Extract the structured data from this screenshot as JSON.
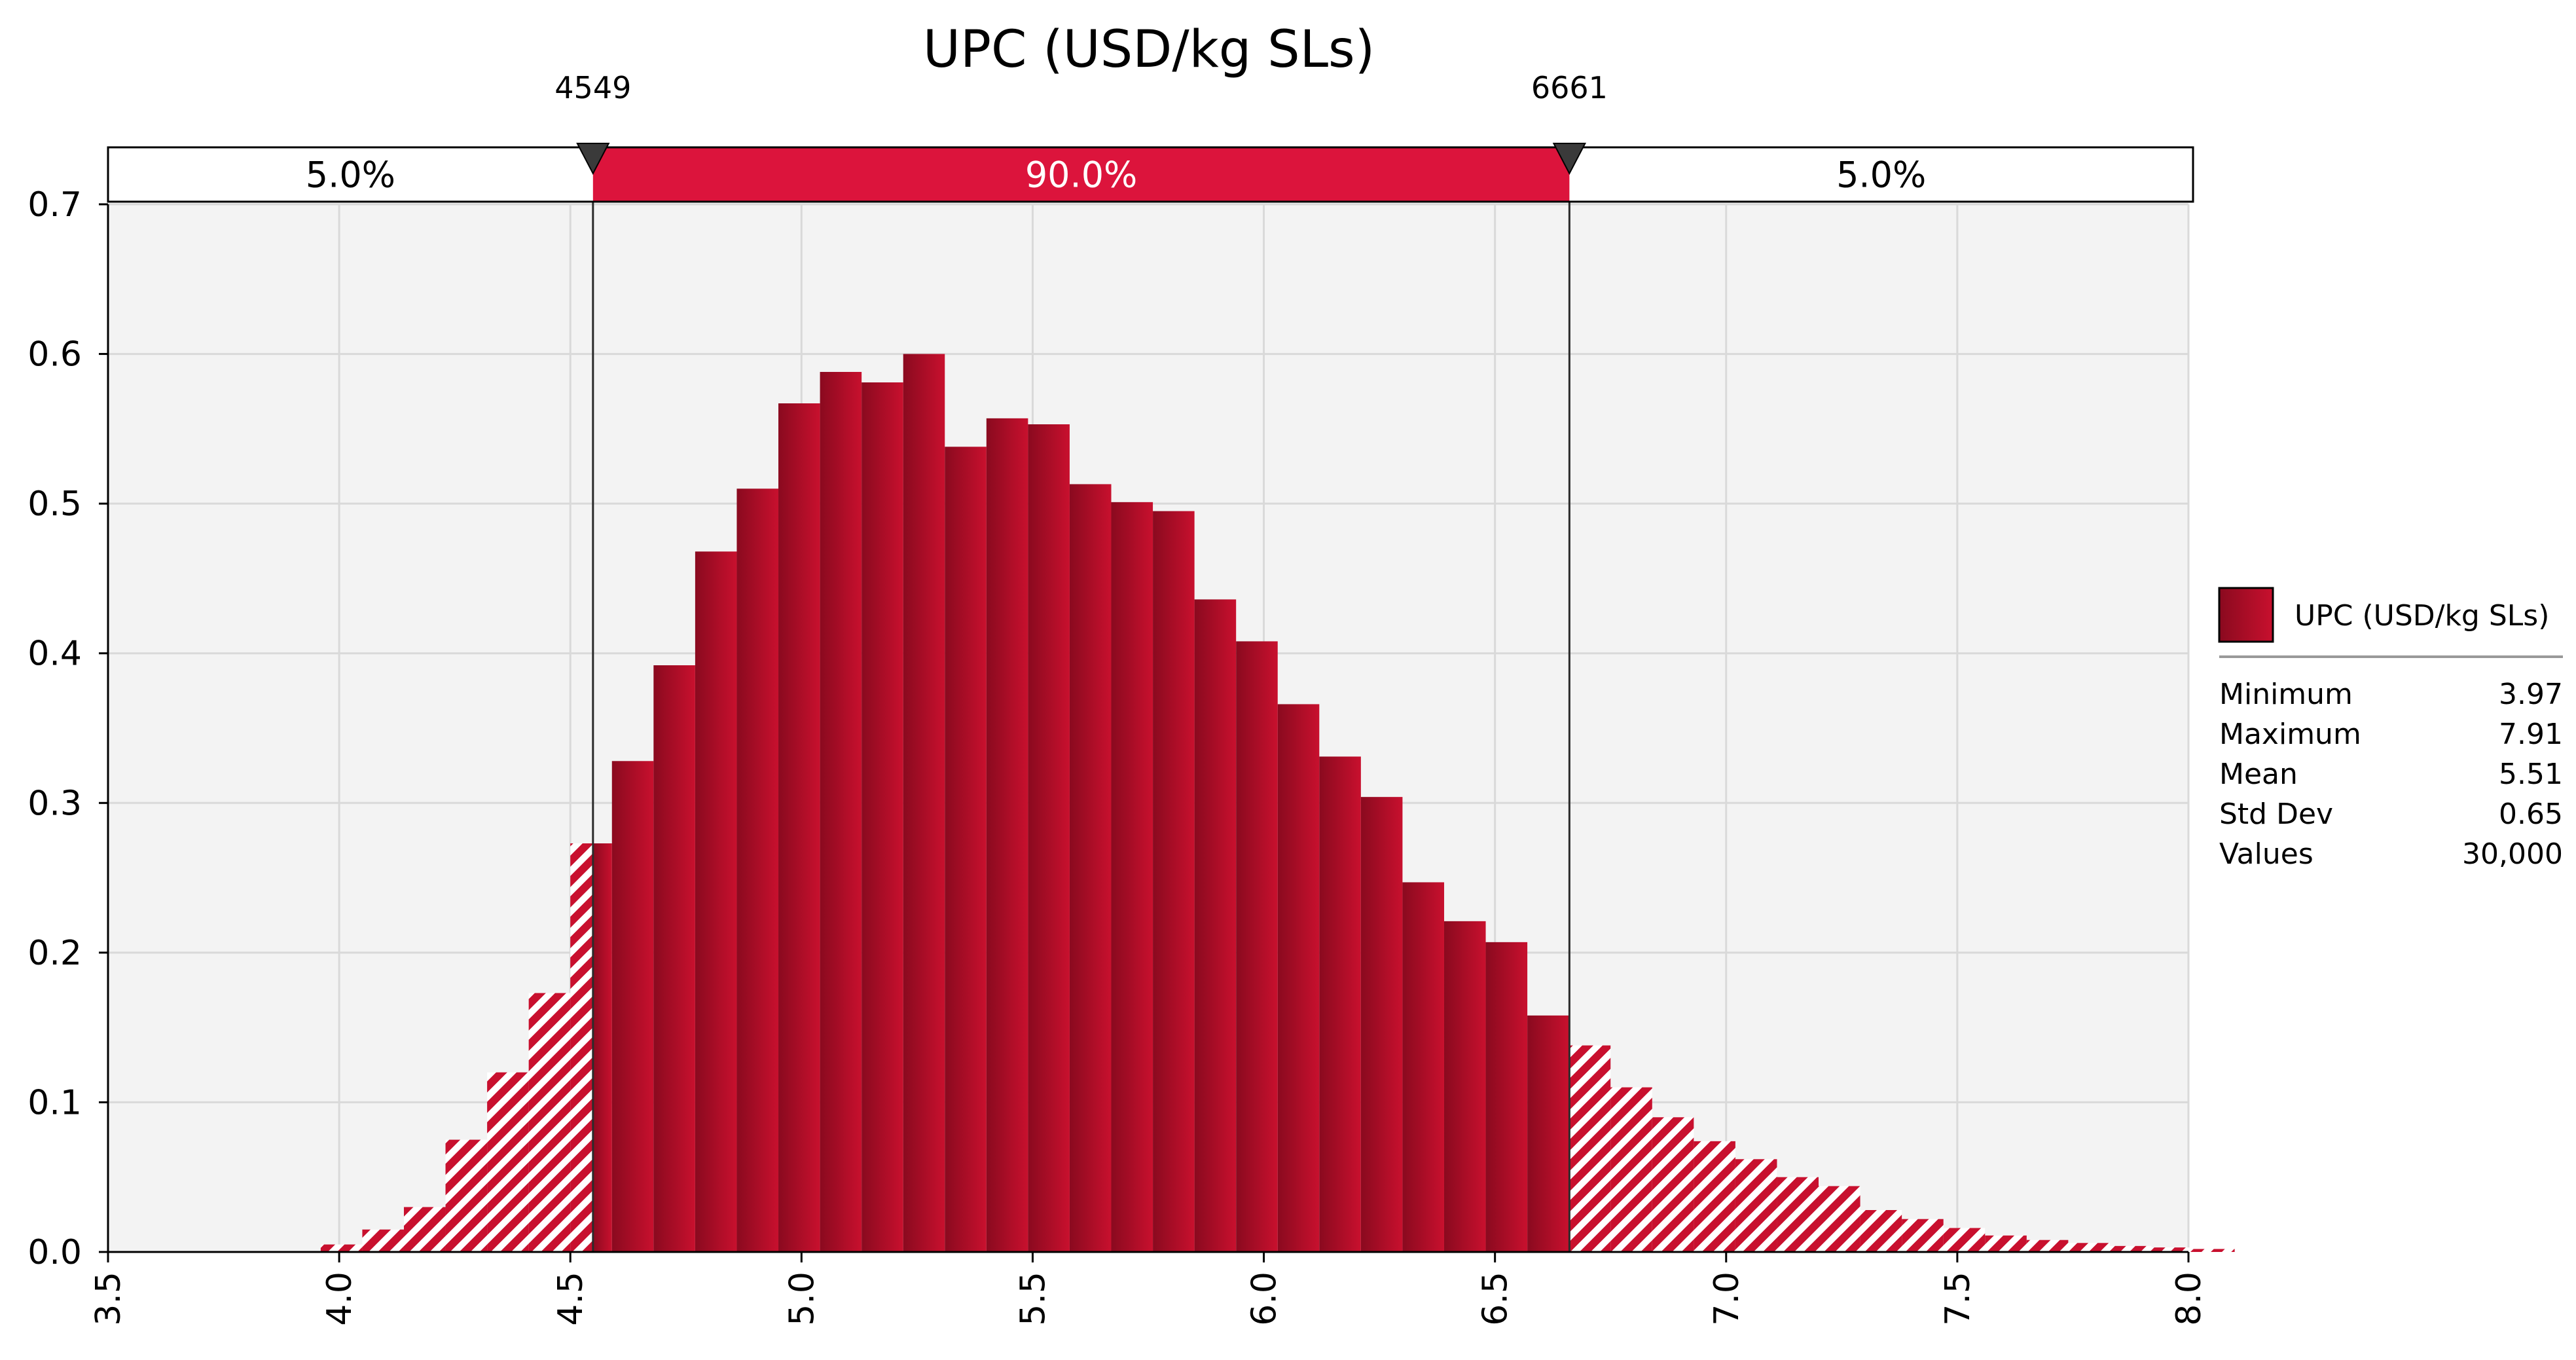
{
  "chart_data": {
    "type": "bar",
    "title": "UPC (USD/kg SLs)",
    "xlim": [
      3.5,
      8.0
    ],
    "ylim": [
      0,
      0.7
    ],
    "x_ticks": [
      "3.5",
      "4.0",
      "4.5",
      "5.0",
      "5.5",
      "6.0",
      "6.5",
      "7.0",
      "7.5",
      "8.0"
    ],
    "y_ticks": [
      "0.0",
      "0.1",
      "0.2",
      "0.3",
      "0.4",
      "0.5",
      "0.6",
      "0.7"
    ],
    "grid": true,
    "bin_width": 0.09,
    "bin_start": 3.96,
    "values": [
      0.005,
      0.015,
      0.03,
      0.075,
      0.12,
      0.173,
      0.273,
      0.328,
      0.392,
      0.468,
      0.51,
      0.567,
      0.588,
      0.581,
      0.6,
      0.538,
      0.557,
      0.553,
      0.513,
      0.501,
      0.495,
      0.436,
      0.408,
      0.366,
      0.331,
      0.304,
      0.247,
      0.221,
      0.207,
      0.158,
      0.138,
      0.11,
      0.09,
      0.074,
      0.062,
      0.05,
      0.044,
      0.028,
      0.022,
      0.016,
      0.011,
      0.008,
      0.006,
      0.004,
      0.003,
      0.002
    ],
    "delimiters": {
      "left": {
        "label": "4549",
        "value": 4.549
      },
      "right": {
        "label": "6661",
        "value": 6.661
      }
    },
    "bands": [
      "5.0%",
      "90.0%",
      "5.0%"
    ],
    "legend": {
      "series_name": "UPC (USD/kg SLs)",
      "placement": "right",
      "stats": [
        {
          "label": "Minimum",
          "value": "3.97"
        },
        {
          "label": "Maximum",
          "value": "7.91"
        },
        {
          "label": "Mean",
          "value": "5.51"
        },
        {
          "label": "Std Dev",
          "value": "0.65"
        },
        {
          "label": "Values",
          "value": "30,000"
        }
      ]
    },
    "colors": {
      "bar": "#c8102e",
      "bar_dark": "#8a0a1f",
      "band_fill": "#dc143c",
      "plot_bg": "#f3f3f3",
      "grid": "#d9d9d9"
    }
  }
}
